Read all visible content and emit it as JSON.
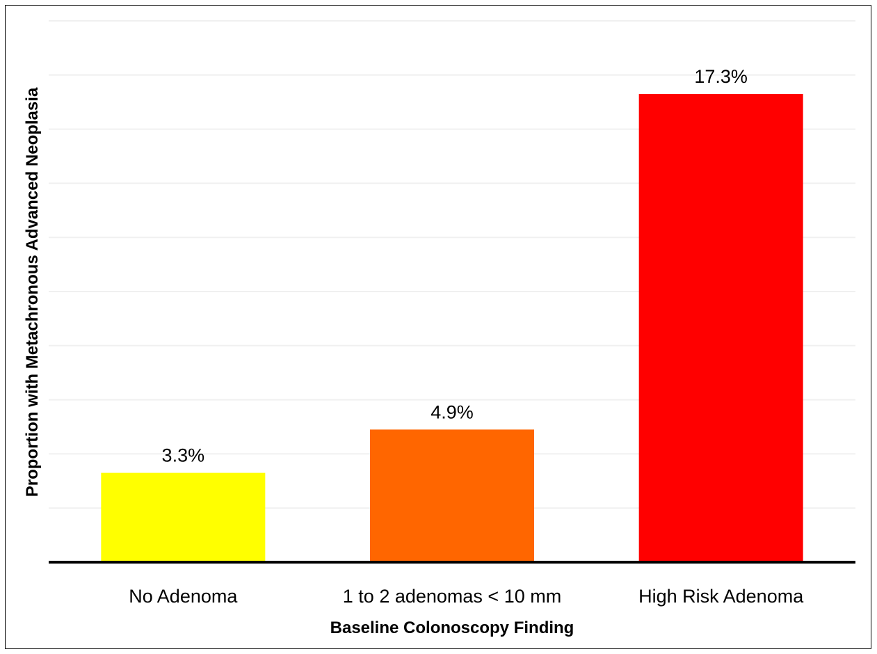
{
  "chart_data": {
    "type": "bar",
    "title": "",
    "xlabel": "Baseline Colonoscopy Finding",
    "ylabel": "Proportion with Metachronous Advanced Neoplasia",
    "categories": [
      "No Adenoma",
      "1 to 2 adenomas < 10 mm",
      "High Risk Adenoma"
    ],
    "values": [
      3.3,
      4.9,
      17.3
    ],
    "value_labels": [
      "3.3%",
      "4.9%",
      "17.3%"
    ],
    "colors": [
      "#ffff00",
      "#ff6600",
      "#ff0000"
    ],
    "ylim": [
      0,
      20
    ],
    "grid": true,
    "y_tick_labels_shown": false,
    "legend": "none"
  }
}
